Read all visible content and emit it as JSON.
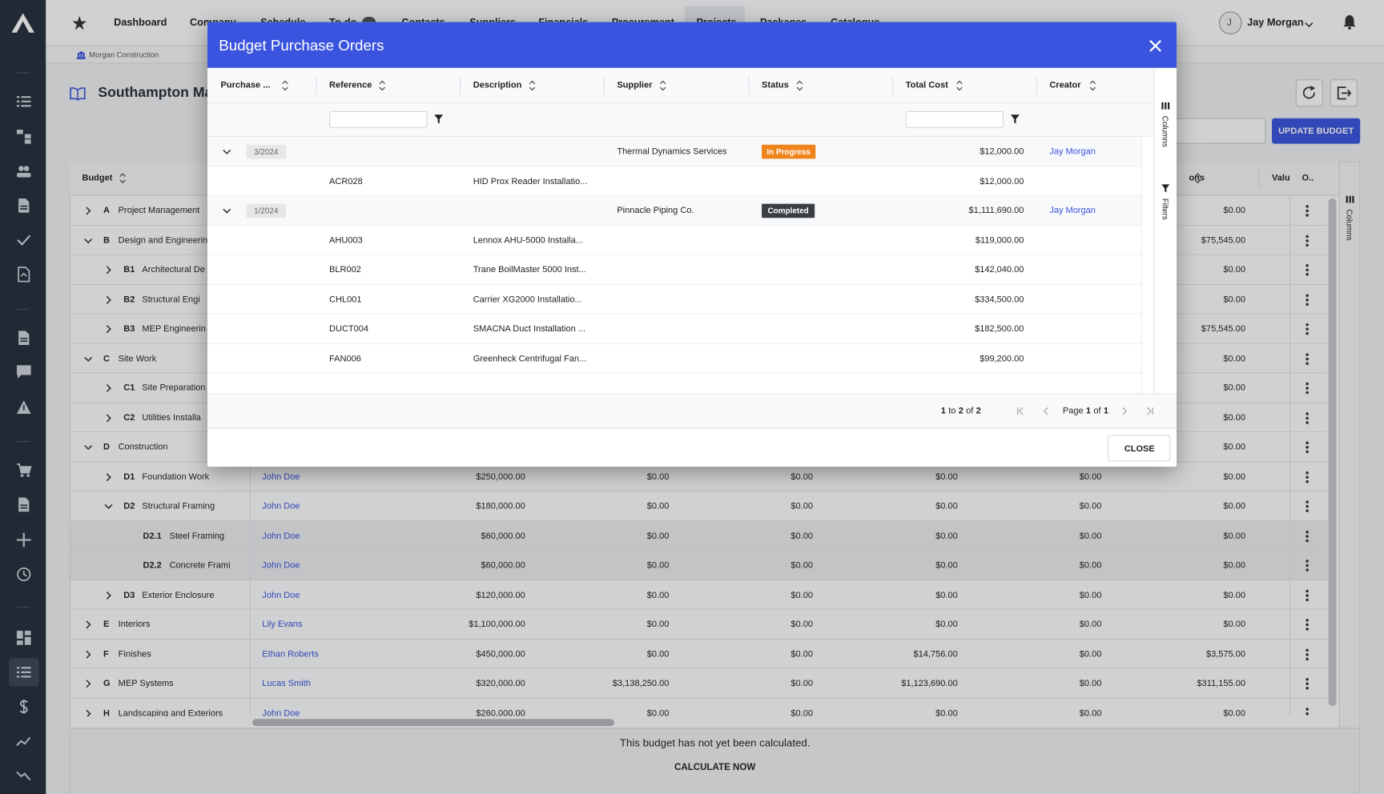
{
  "nav": {
    "tabs": [
      "Dashboard",
      "Company",
      "Schedule",
      "To-do",
      "Contacts",
      "Suppliers",
      "Financials",
      "Procurement",
      "Projects",
      "Packages",
      "Catalogue"
    ],
    "active_tab": 8,
    "user_initial": "J",
    "user_name": "Jay Morgan"
  },
  "breadcrumb": "Morgan Construction",
  "project_title": "Southampton Ma",
  "update_button": "UPDATE BUDGET",
  "budget_table": {
    "headers": [
      "Budget",
      "ons",
      "Valu",
      "O.."
    ],
    "rows": [
      {
        "level": 0,
        "expanded": false,
        "code": "A",
        "name": "Project Management",
        "owner": null,
        "values": [
          null,
          null,
          null,
          null,
          null,
          "$0.00"
        ]
      },
      {
        "level": 0,
        "expanded": true,
        "code": "B",
        "name": "Design and Engineerin",
        "owner": null,
        "values": [
          null,
          null,
          null,
          null,
          null,
          "$75,545.00"
        ]
      },
      {
        "level": 1,
        "expanded": false,
        "code": "B1",
        "name": "Architectural De",
        "owner": null,
        "values": [
          null,
          null,
          null,
          null,
          null,
          "$0.00"
        ]
      },
      {
        "level": 1,
        "expanded": false,
        "code": "B2",
        "name": "Structural Engi",
        "owner": null,
        "values": [
          null,
          null,
          null,
          null,
          null,
          "$0.00"
        ]
      },
      {
        "level": 1,
        "expanded": false,
        "code": "B3",
        "name": "MEP Engineerin",
        "owner": null,
        "values": [
          null,
          null,
          null,
          null,
          null,
          "$75,545.00"
        ]
      },
      {
        "level": 0,
        "expanded": true,
        "code": "C",
        "name": "Site Work",
        "owner": null,
        "values": [
          null,
          null,
          null,
          null,
          null,
          "$0.00"
        ]
      },
      {
        "level": 1,
        "expanded": false,
        "code": "C1",
        "name": "Site Preparation",
        "owner": null,
        "values": [
          null,
          null,
          null,
          null,
          null,
          "$0.00"
        ]
      },
      {
        "level": 1,
        "expanded": false,
        "code": "C2",
        "name": "Utilities Installa",
        "owner": null,
        "values": [
          null,
          null,
          null,
          null,
          null,
          "$0.00"
        ]
      },
      {
        "level": 0,
        "expanded": true,
        "code": "D",
        "name": "Construction",
        "owner": null,
        "values": [
          null,
          null,
          null,
          null,
          null,
          "$0.00"
        ]
      },
      {
        "level": 1,
        "expanded": false,
        "code": "D1",
        "name": "Foundation Work",
        "owner": "John Doe",
        "values": [
          "$250,000.00",
          "$0.00",
          "$0.00",
          "$0.00",
          "$0.00",
          "$0.00"
        ]
      },
      {
        "level": 1,
        "expanded": true,
        "code": "D2",
        "name": "Structural Framing",
        "owner": "John Doe",
        "values": [
          "$180,000.00",
          "$0.00",
          "$0.00",
          "$0.00",
          "$0.00",
          "$0.00"
        ]
      },
      {
        "level": 2,
        "expanded": false,
        "code": "D2.1",
        "name": "Steel Framing",
        "owner": "John Doe",
        "values": [
          "$60,000.00",
          "$0.00",
          "$0.00",
          "$0.00",
          "$0.00",
          "$0.00"
        ]
      },
      {
        "level": 2,
        "expanded": false,
        "code": "D2.2",
        "name": "Concrete Frami",
        "owner": "John Doe",
        "values": [
          "$60,000.00",
          "$0.00",
          "$0.00",
          "$0.00",
          "$0.00",
          "$0.00"
        ]
      },
      {
        "level": 1,
        "expanded": false,
        "code": "D3",
        "name": "Exterior Enclosure",
        "owner": "John Doe",
        "values": [
          "$120,000.00",
          "$0.00",
          "$0.00",
          "$0.00",
          "$0.00",
          "$0.00"
        ]
      },
      {
        "level": 0,
        "expanded": false,
        "code": "E",
        "name": "Interiors",
        "owner": "Lily Evans",
        "values": [
          "$1,100,000.00",
          "$0.00",
          "$0.00",
          "$0.00",
          "$0.00",
          "$0.00"
        ]
      },
      {
        "level": 0,
        "expanded": false,
        "code": "F",
        "name": "Finishes",
        "owner": "Ethan Roberts",
        "values": [
          "$450,000.00",
          "$0.00",
          "$0.00",
          "$14,756.00",
          "$0.00",
          "$3,575.00"
        ]
      },
      {
        "level": 0,
        "expanded": false,
        "code": "G",
        "name": "MEP Systems",
        "owner": "Lucas Smith",
        "values": [
          "$320,000.00",
          "$3,138,250.00",
          "$0.00",
          "$1,123,690.00",
          "$0.00",
          "$311,155.00"
        ]
      },
      {
        "level": 0,
        "expanded": false,
        "code": "H",
        "name": "Landscaping and Exteriors",
        "owner": "John Doe",
        "values": [
          "$260,000.00",
          "$0.00",
          "$0.00",
          "$0.00",
          "$0.00",
          "$0.00"
        ]
      }
    ],
    "side_label": "Columns",
    "footer_message": "This budget has not yet been calculated.",
    "footer_action": "CALCULATE NOW"
  },
  "modal": {
    "title": "Budget Purchase Orders",
    "columns": [
      "Purchase ...",
      "Reference",
      "Description",
      "Supplier",
      "Status",
      "Total Cost",
      "Creator"
    ],
    "groups": [
      {
        "po": "3/2024",
        "supplier": "Thermal Dynamics Services",
        "status": "In Progress",
        "total": "$12,000.00",
        "creator": "Jay Morgan",
        "items": [
          {
            "reference": "ACR028",
            "description": "HID Prox Reader Installatio...",
            "total": "$12,000.00"
          }
        ]
      },
      {
        "po": "1/2024",
        "supplier": "Pinnacle Piping Co.",
        "status": "Completed",
        "total": "$1,111,690.00",
        "creator": "Jay Morgan",
        "items": [
          {
            "reference": "AHU003",
            "description": "Lennox AHU-5000 Installa...",
            "total": "$119,000.00"
          },
          {
            "reference": "BLR002",
            "description": "Trane BoilMaster 5000 Inst...",
            "total": "$142,040.00"
          },
          {
            "reference": "CHL001",
            "description": "Carrier XG2000 Installatio...",
            "total": "$334,500.00"
          },
          {
            "reference": "DUCT004",
            "description": "SMACNA Duct Installation ...",
            "total": "$182,500.00"
          },
          {
            "reference": "FAN006",
            "description": "Greenheck Centrifugal Fan...",
            "total": "$99,200.00"
          }
        ]
      }
    ],
    "side_panel": [
      "Columns",
      "Filters"
    ],
    "pagination": {
      "range": [
        "1",
        "to",
        "2",
        "of",
        "2"
      ],
      "page": [
        "Page",
        "1",
        "of",
        "1"
      ]
    },
    "close_button": "CLOSE"
  }
}
